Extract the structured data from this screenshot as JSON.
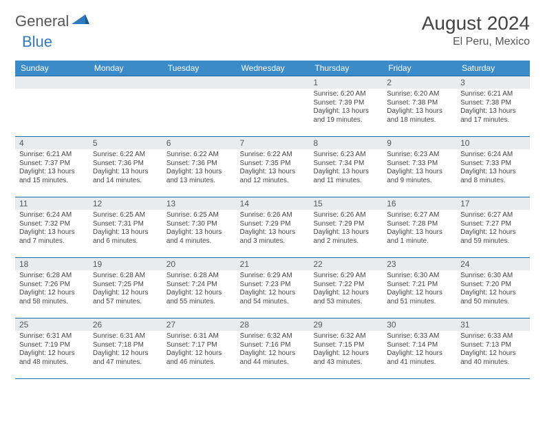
{
  "logo": {
    "general": "General",
    "blue": "Blue"
  },
  "title": "August 2024",
  "location": "El Peru, Mexico",
  "colors": {
    "header_bg": "#3b8bc9",
    "header_text": "#ffffff",
    "daynum_bg": "#e9ecef",
    "border": "#1f6aa5",
    "logo_gray": "#555555",
    "logo_blue": "#2f7bbf"
  },
  "weekdays": [
    "Sunday",
    "Monday",
    "Tuesday",
    "Wednesday",
    "Thursday",
    "Friday",
    "Saturday"
  ],
  "weeks": [
    [
      {
        "empty": true
      },
      {
        "empty": true
      },
      {
        "empty": true
      },
      {
        "empty": true
      },
      {
        "n": "1",
        "sr": "6:20 AM",
        "ss": "7:39 PM",
        "dl": "13 hours and 19 minutes."
      },
      {
        "n": "2",
        "sr": "6:20 AM",
        "ss": "7:38 PM",
        "dl": "13 hours and 18 minutes."
      },
      {
        "n": "3",
        "sr": "6:21 AM",
        "ss": "7:38 PM",
        "dl": "13 hours and 17 minutes."
      }
    ],
    [
      {
        "n": "4",
        "sr": "6:21 AM",
        "ss": "7:37 PM",
        "dl": "13 hours and 15 minutes."
      },
      {
        "n": "5",
        "sr": "6:22 AM",
        "ss": "7:36 PM",
        "dl": "13 hours and 14 minutes."
      },
      {
        "n": "6",
        "sr": "6:22 AM",
        "ss": "7:36 PM",
        "dl": "13 hours and 13 minutes."
      },
      {
        "n": "7",
        "sr": "6:22 AM",
        "ss": "7:35 PM",
        "dl": "13 hours and 12 minutes."
      },
      {
        "n": "8",
        "sr": "6:23 AM",
        "ss": "7:34 PM",
        "dl": "13 hours and 11 minutes."
      },
      {
        "n": "9",
        "sr": "6:23 AM",
        "ss": "7:33 PM",
        "dl": "13 hours and 9 minutes."
      },
      {
        "n": "10",
        "sr": "6:24 AM",
        "ss": "7:33 PM",
        "dl": "13 hours and 8 minutes."
      }
    ],
    [
      {
        "n": "11",
        "sr": "6:24 AM",
        "ss": "7:32 PM",
        "dl": "13 hours and 7 minutes."
      },
      {
        "n": "12",
        "sr": "6:25 AM",
        "ss": "7:31 PM",
        "dl": "13 hours and 6 minutes."
      },
      {
        "n": "13",
        "sr": "6:25 AM",
        "ss": "7:30 PM",
        "dl": "13 hours and 4 minutes."
      },
      {
        "n": "14",
        "sr": "6:26 AM",
        "ss": "7:29 PM",
        "dl": "13 hours and 3 minutes."
      },
      {
        "n": "15",
        "sr": "6:26 AM",
        "ss": "7:29 PM",
        "dl": "13 hours and 2 minutes."
      },
      {
        "n": "16",
        "sr": "6:27 AM",
        "ss": "7:28 PM",
        "dl": "13 hours and 1 minute."
      },
      {
        "n": "17",
        "sr": "6:27 AM",
        "ss": "7:27 PM",
        "dl": "12 hours and 59 minutes."
      }
    ],
    [
      {
        "n": "18",
        "sr": "6:28 AM",
        "ss": "7:26 PM",
        "dl": "12 hours and 58 minutes."
      },
      {
        "n": "19",
        "sr": "6:28 AM",
        "ss": "7:25 PM",
        "dl": "12 hours and 57 minutes."
      },
      {
        "n": "20",
        "sr": "6:28 AM",
        "ss": "7:24 PM",
        "dl": "12 hours and 55 minutes."
      },
      {
        "n": "21",
        "sr": "6:29 AM",
        "ss": "7:23 PM",
        "dl": "12 hours and 54 minutes."
      },
      {
        "n": "22",
        "sr": "6:29 AM",
        "ss": "7:22 PM",
        "dl": "12 hours and 53 minutes."
      },
      {
        "n": "23",
        "sr": "6:30 AM",
        "ss": "7:21 PM",
        "dl": "12 hours and 51 minutes."
      },
      {
        "n": "24",
        "sr": "6:30 AM",
        "ss": "7:20 PM",
        "dl": "12 hours and 50 minutes."
      }
    ],
    [
      {
        "n": "25",
        "sr": "6:31 AM",
        "ss": "7:19 PM",
        "dl": "12 hours and 48 minutes."
      },
      {
        "n": "26",
        "sr": "6:31 AM",
        "ss": "7:18 PM",
        "dl": "12 hours and 47 minutes."
      },
      {
        "n": "27",
        "sr": "6:31 AM",
        "ss": "7:17 PM",
        "dl": "12 hours and 46 minutes."
      },
      {
        "n": "28",
        "sr": "6:32 AM",
        "ss": "7:16 PM",
        "dl": "12 hours and 44 minutes."
      },
      {
        "n": "29",
        "sr": "6:32 AM",
        "ss": "7:15 PM",
        "dl": "12 hours and 43 minutes."
      },
      {
        "n": "30",
        "sr": "6:33 AM",
        "ss": "7:14 PM",
        "dl": "12 hours and 41 minutes."
      },
      {
        "n": "31",
        "sr": "6:33 AM",
        "ss": "7:13 PM",
        "dl": "12 hours and 40 minutes."
      }
    ]
  ],
  "labels": {
    "sunrise": "Sunrise:",
    "sunset": "Sunset:",
    "daylight": "Daylight:"
  }
}
